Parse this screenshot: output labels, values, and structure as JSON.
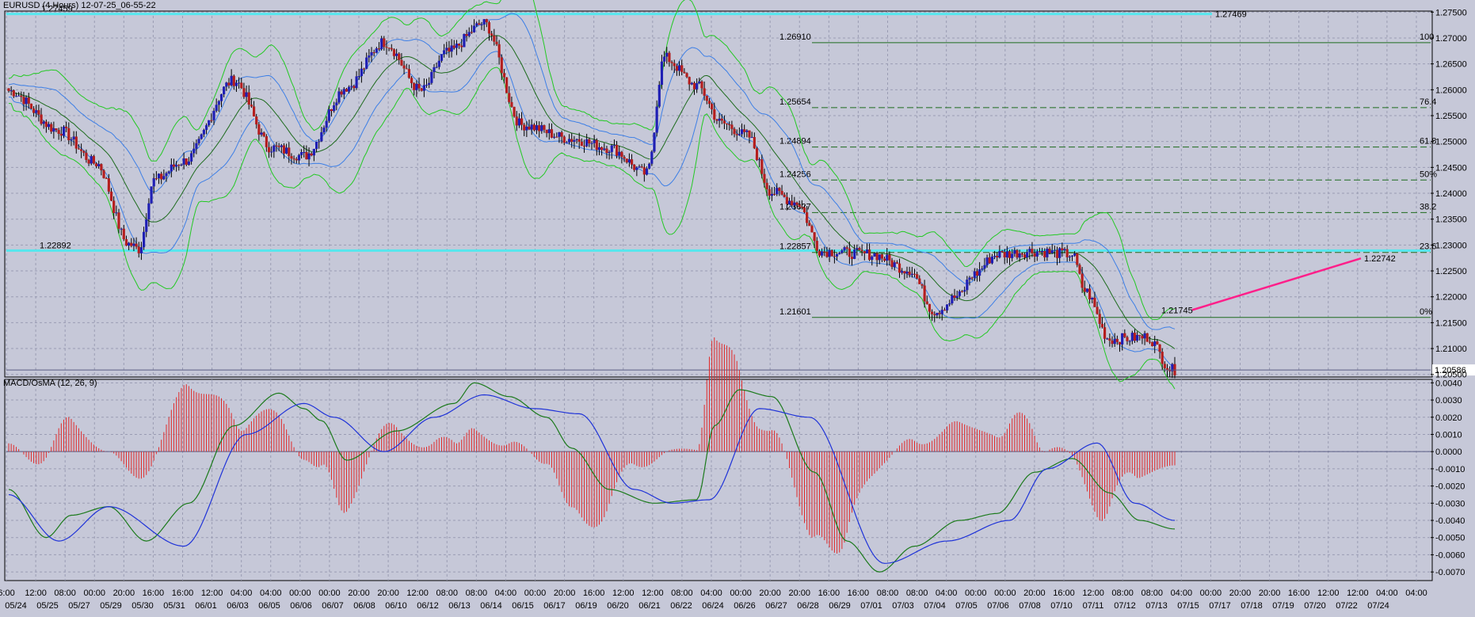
{
  "header": {
    "symbol_line": "EURUSD (4 Hours) 12-07-25_06-55-22"
  },
  "macd_panel": {
    "label": "MACD/OsMA (12, 26, 9)"
  },
  "colors": {
    "background": "#c6c8d8",
    "bull_body": "#1f1fb4",
    "bear_body": "#b41e1e",
    "wick": "#000000",
    "bb_outer": "#22c922",
    "bb_inner": "#3d7fe6",
    "mid_line": "#1d6b1d",
    "white_line": "#ffffff",
    "cyan_level": "#56e7ee",
    "fib_line": "#1d6b1d",
    "pink_line": "#ff1f8a",
    "histogram": "#e02a2a",
    "macd_line": "#1b7a1b",
    "signal_line": "#1f33d8"
  },
  "chart_data": [
    {
      "type": "candlestick",
      "name": "EURUSD (4 Hours)",
      "ylim": [
        1.2045,
        1.2752
      ],
      "y_ticks": [
        "1.27500",
        "1.27000",
        "1.26500",
        "1.26000",
        "1.25500",
        "1.25000",
        "1.24500",
        "1.24000",
        "1.23500",
        "1.23000",
        "1.22500",
        "1.22000",
        "1.21500",
        "1.21000",
        "1.20500"
      ],
      "current_price_label": "1.20586",
      "current_price": 1.20586,
      "horizontal_levels": [
        {
          "label_left": "1.27459",
          "label_right": "1.27469",
          "value": 1.27464,
          "color": "cyan"
        },
        {
          "label_left": "1.22892",
          "value": 1.22892,
          "color": "cyan"
        }
      ],
      "fibonacci": {
        "levels": [
          {
            "price_label": "1.26910",
            "value": 1.2691,
            "pct_label": "100",
            "style": "solid"
          },
          {
            "price_label": "1.25654",
            "value": 1.25654,
            "pct_label": "76.4",
            "style": "dashed"
          },
          {
            "price_label": "1.24894",
            "value": 1.24894,
            "pct_label": "61.8",
            "style": "dashed"
          },
          {
            "price_label": "1.24256",
            "value": 1.24256,
            "pct_label": "50%",
            "style": "dashed"
          },
          {
            "price_label": "1.23627",
            "value": 1.23627,
            "pct_label": "38.2",
            "style": "dashed"
          },
          {
            "price_label": "1.22857",
            "value": 1.22857,
            "pct_label": "23.6",
            "style": "dashed"
          },
          {
            "price_label": "1.21601",
            "value": 1.21601,
            "pct_label": "0%",
            "style": "solid"
          }
        ]
      },
      "trend_line": {
        "start_label": "1.21745",
        "start_value": 1.21745,
        "end_label": "1.22742",
        "end_value": 1.22742
      },
      "anchors": [
        [
          0,
          1.2598
        ],
        [
          20,
          1.2522
        ],
        [
          35,
          1.2458
        ],
        [
          48,
          1.2302
        ],
        [
          52,
          1.2292
        ],
        [
          58,
          1.2425
        ],
        [
          70,
          1.2462
        ],
        [
          90,
          1.2618
        ],
        [
          105,
          1.2488
        ],
        [
          118,
          1.2472
        ],
        [
          135,
          1.2605
        ],
        [
          150,
          1.2692
        ],
        [
          165,
          1.2598
        ],
        [
          175,
          1.2672
        ],
        [
          190,
          1.2728
        ],
        [
          205,
          1.2532
        ],
        [
          225,
          1.2505
        ],
        [
          240,
          1.2488
        ],
        [
          255,
          1.2438
        ],
        [
          262,
          1.2662
        ],
        [
          275,
          1.2608
        ],
        [
          285,
          1.2535
        ],
        [
          295,
          1.2512
        ],
        [
          305,
          1.2402
        ],
        [
          315,
          1.2382
        ],
        [
          325,
          1.2288
        ],
        [
          345,
          1.2282
        ],
        [
          360,
          1.2252
        ],
        [
          370,
          1.2172
        ],
        [
          380,
          1.2202
        ],
        [
          385,
          1.2242
        ],
        [
          395,
          1.2282
        ],
        [
          410,
          1.2288
        ],
        [
          425,
          1.2282
        ],
        [
          430,
          1.2212
        ],
        [
          440,
          1.2118
        ],
        [
          455,
          1.2122
        ],
        [
          465,
          1.2059
        ]
      ]
    },
    {
      "type": "macd",
      "name": "MACD/OsMA (12, 26, 9)",
      "ylim": [
        -0.0075,
        0.0042
      ],
      "y_ticks": [
        "0.0040",
        "0.0030",
        "0.0020",
        "0.0010",
        "0.0000",
        "-0.0010",
        "-0.0020",
        "-0.0030",
        "-0.0040",
        "-0.0050",
        "-0.0060",
        "-0.0070"
      ],
      "macd_anchors": [
        [
          0,
          -0.0022
        ],
        [
          15,
          -0.005
        ],
        [
          25,
          -0.0037
        ],
        [
          40,
          -0.0032
        ],
        [
          55,
          -0.0052
        ],
        [
          72,
          -0.003
        ],
        [
          90,
          0.0015
        ],
        [
          108,
          0.0034
        ],
        [
          118,
          0.0025
        ],
        [
          125,
          0.0018
        ],
        [
          135,
          -0.0005
        ],
        [
          155,
          0.0012
        ],
        [
          178,
          0.0028
        ],
        [
          186,
          0.004
        ],
        [
          200,
          0.0032
        ],
        [
          215,
          0.002
        ],
        [
          225,
          0.0002
        ],
        [
          240,
          -0.0022
        ],
        [
          258,
          -0.003
        ],
        [
          275,
          -0.0028
        ],
        [
          282,
          0.0015
        ],
        [
          292,
          0.0036
        ],
        [
          305,
          0.0032
        ],
        [
          322,
          -0.0012
        ],
        [
          335,
          -0.0052
        ],
        [
          348,
          -0.007
        ],
        [
          362,
          -0.0055
        ],
        [
          380,
          -0.004
        ],
        [
          395,
          -0.0036
        ],
        [
          410,
          -0.0012
        ],
        [
          425,
          -0.0004
        ],
        [
          440,
          -0.0024
        ],
        [
          452,
          -0.004
        ],
        [
          466,
          -0.0045
        ]
      ],
      "signal_anchors": [
        [
          0,
          -0.0025
        ],
        [
          20,
          -0.0052
        ],
        [
          40,
          -0.0032
        ],
        [
          70,
          -0.0055
        ],
        [
          95,
          0.001
        ],
        [
          118,
          0.0028
        ],
        [
          130,
          0.002
        ],
        [
          150,
          0.0
        ],
        [
          170,
          0.002
        ],
        [
          190,
          0.0033
        ],
        [
          210,
          0.0025
        ],
        [
          228,
          0.0022
        ],
        [
          250,
          -0.0022
        ],
        [
          265,
          -0.003
        ],
        [
          280,
          -0.0028
        ],
        [
          300,
          0.0025
        ],
        [
          320,
          0.002
        ],
        [
          350,
          -0.0065
        ],
        [
          375,
          -0.0052
        ],
        [
          400,
          -0.004
        ],
        [
          415,
          -0.001
        ],
        [
          435,
          0.0005
        ],
        [
          450,
          -0.003
        ],
        [
          466,
          -0.004
        ]
      ]
    }
  ],
  "x_axis": {
    "labels": [
      "6:00",
      "12:00",
      "08:00",
      "00:00",
      "20:00",
      "16:00",
      "16:00",
      "12:00",
      "04:00",
      "04:00",
      "00:00",
      "00:00",
      "20:00",
      "20:00",
      "12:00",
      "08:00",
      "08:00",
      "04:00",
      "00:00",
      "20:00",
      "16:00",
      "12:00",
      "12:00",
      "08:00",
      "04:00",
      "00:00",
      "20:00",
      "20:00",
      "16:00",
      "16:00",
      "08:00",
      "08:00",
      "04:00",
      "00:00",
      "00:00",
      "20:00",
      "16:00",
      "12:00",
      "08:00",
      "08:00",
      "04:00",
      "00:00",
      "20:00",
      "20:00",
      "16:00",
      "12:00",
      "12:00",
      "04:00",
      "04:00"
    ],
    "dates": [
      "05/24",
      "05/25",
      "05/27",
      "05/29",
      "05/30",
      "05/31",
      "06/01",
      "06/03",
      "06/05",
      "06/06",
      "06/07",
      "06/08",
      "06/10",
      "06/12",
      "06/13",
      "06/14",
      "06/15",
      "06/17",
      "06/19",
      "06/20",
      "06/21",
      "06/22",
      "06/24",
      "06/26",
      "06/27",
      "06/28",
      "06/29",
      "07/01",
      "07/03",
      "07/04",
      "07/05",
      "07/06",
      "07/08",
      "07/10",
      "07/11",
      "07/12",
      "07/13",
      "07/15",
      "07/17",
      "07/18",
      "07/19",
      "07/20",
      "07/22",
      "07/24"
    ]
  }
}
